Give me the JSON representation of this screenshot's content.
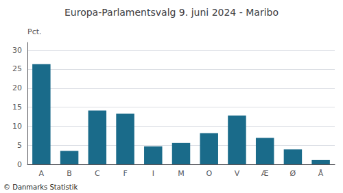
{
  "chart_data": {
    "type": "bar",
    "title": "Europa-Parlamentsvalg 9. juni 2024 - Maribo",
    "categories": [
      "A",
      "B",
      "C",
      "F",
      "I",
      "M",
      "O",
      "V",
      "Æ",
      "Ø",
      "Å"
    ],
    "values": [
      26.3,
      3.5,
      14.1,
      13.3,
      4.7,
      5.6,
      8.2,
      12.8,
      6.9,
      3.9,
      1.1
    ],
    "color": "#1a6b8a",
    "ylabel": "Pct.",
    "ylim": [
      0,
      32
    ],
    "yticks": [
      0,
      5,
      10,
      15,
      20,
      25,
      30
    ],
    "grid": true,
    "annotations": [
      "© Danmarks Statistik"
    ]
  }
}
